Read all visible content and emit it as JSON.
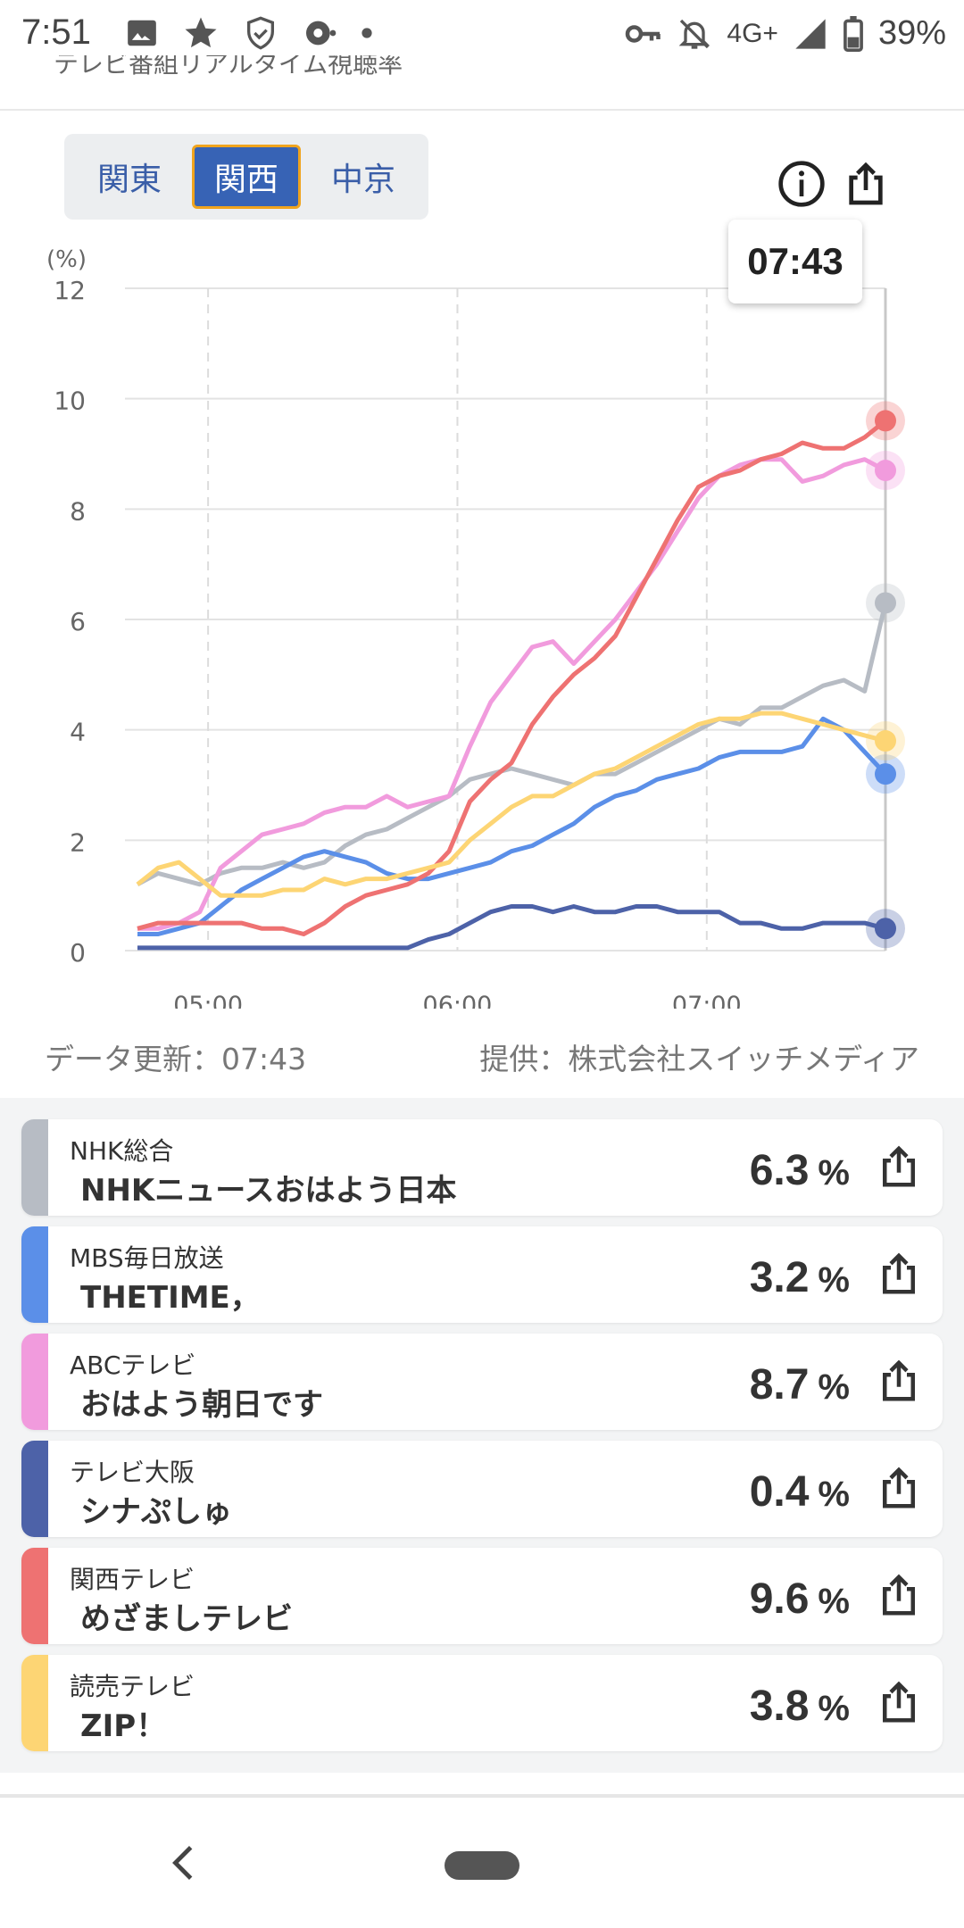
{
  "status_bar": {
    "time": "7:51",
    "network": "4G+",
    "battery": "39%",
    "left_icons": [
      "image-icon",
      "star-icon",
      "shield-icon",
      "sync-icon",
      "dot-icon"
    ],
    "right_icons": [
      "key-icon",
      "bell-off-icon",
      "signal-icon",
      "battery-icon"
    ]
  },
  "header": {
    "title_cut": "テレビ番組リアルタイム視聴率"
  },
  "regions": [
    {
      "label": "関東",
      "active": false
    },
    {
      "label": "関西",
      "active": true
    },
    {
      "label": "中京",
      "active": false
    }
  ],
  "chart_tools": {
    "info_icon": "info-icon",
    "share_icon": "share-icon"
  },
  "tooltip": {
    "time": "07:43"
  },
  "chart_data": {
    "type": "line",
    "yunit": "(%)",
    "ylim": [
      0,
      12
    ],
    "yticks": [
      "0",
      "2",
      "4",
      "6",
      "8",
      "10",
      "12"
    ],
    "xticks": [
      "05:00",
      "06:00",
      "07:00"
    ],
    "x": [
      "04:43",
      "04:48",
      "04:53",
      "04:58",
      "05:03",
      "05:08",
      "05:13",
      "05:18",
      "05:23",
      "05:28",
      "05:33",
      "05:38",
      "05:43",
      "05:48",
      "05:53",
      "05:58",
      "06:03",
      "06:08",
      "06:13",
      "06:18",
      "06:23",
      "06:28",
      "06:33",
      "06:38",
      "06:43",
      "06:48",
      "06:53",
      "06:58",
      "07:03",
      "07:08",
      "07:13",
      "07:18",
      "07:23",
      "07:28",
      "07:33",
      "07:38",
      "07:43"
    ],
    "grid": true,
    "series": [
      {
        "name": "NHK総合",
        "color": "#b7bcc4",
        "values": [
          1.2,
          1.4,
          1.3,
          1.2,
          1.4,
          1.5,
          1.5,
          1.6,
          1.5,
          1.6,
          1.9,
          2.1,
          2.2,
          2.4,
          2.6,
          2.8,
          3.1,
          3.2,
          3.3,
          3.2,
          3.1,
          3.0,
          3.2,
          3.2,
          3.4,
          3.6,
          3.8,
          4.0,
          4.2,
          4.1,
          4.4,
          4.4,
          4.6,
          4.8,
          4.9,
          4.7,
          6.3
        ]
      },
      {
        "name": "MBS毎日放送",
        "color": "#5b8fe8",
        "values": [
          0.3,
          0.3,
          0.4,
          0.5,
          0.8,
          1.1,
          1.3,
          1.5,
          1.7,
          1.8,
          1.7,
          1.6,
          1.4,
          1.3,
          1.3,
          1.4,
          1.5,
          1.6,
          1.8,
          1.9,
          2.1,
          2.3,
          2.6,
          2.8,
          2.9,
          3.1,
          3.2,
          3.3,
          3.5,
          3.6,
          3.6,
          3.6,
          3.7,
          4.2,
          4.0,
          3.6,
          3.2
        ]
      },
      {
        "name": "ABCテレビ",
        "color": "#f19bdd",
        "values": [
          0.4,
          0.4,
          0.5,
          0.7,
          1.5,
          1.8,
          2.1,
          2.2,
          2.3,
          2.5,
          2.6,
          2.6,
          2.8,
          2.6,
          2.7,
          2.8,
          3.7,
          4.5,
          5.0,
          5.5,
          5.6,
          5.2,
          5.6,
          6.0,
          6.5,
          7.0,
          7.6,
          8.2,
          8.6,
          8.8,
          8.9,
          8.9,
          8.5,
          8.6,
          8.8,
          8.9,
          8.7
        ]
      },
      {
        "name": "テレビ大阪",
        "color": "#4d62a8",
        "values": [
          0.05,
          0.05,
          0.05,
          0.05,
          0.05,
          0.05,
          0.05,
          0.05,
          0.05,
          0.05,
          0.05,
          0.05,
          0.05,
          0.05,
          0.2,
          0.3,
          0.5,
          0.7,
          0.8,
          0.8,
          0.7,
          0.8,
          0.7,
          0.7,
          0.8,
          0.8,
          0.7,
          0.7,
          0.7,
          0.5,
          0.5,
          0.4,
          0.4,
          0.5,
          0.5,
          0.5,
          0.4
        ]
      },
      {
        "name": "関西テレビ",
        "color": "#ee7272",
        "values": [
          0.4,
          0.5,
          0.5,
          0.5,
          0.5,
          0.5,
          0.4,
          0.4,
          0.3,
          0.5,
          0.8,
          1.0,
          1.1,
          1.2,
          1.4,
          1.8,
          2.7,
          3.1,
          3.4,
          4.1,
          4.6,
          5.0,
          5.3,
          5.7,
          6.4,
          7.1,
          7.8,
          8.4,
          8.6,
          8.7,
          8.9,
          9.0,
          9.2,
          9.1,
          9.1,
          9.3,
          9.6
        ]
      },
      {
        "name": "読売テレビ",
        "color": "#fdd574",
        "values": [
          1.2,
          1.5,
          1.6,
          1.3,
          1.0,
          1.0,
          1.0,
          1.1,
          1.1,
          1.3,
          1.2,
          1.3,
          1.3,
          1.4,
          1.5,
          1.6,
          2.0,
          2.3,
          2.6,
          2.8,
          2.8,
          3.0,
          3.2,
          3.3,
          3.5,
          3.7,
          3.9,
          4.1,
          4.2,
          4.2,
          4.3,
          4.3,
          4.2,
          4.1,
          4.0,
          3.9,
          3.8
        ]
      }
    ]
  },
  "footnote": {
    "updated": "データ更新：07:43",
    "provider": "提供：株式会社スイッチメディア"
  },
  "list": [
    {
      "channel": "NHK総合",
      "program": "NHKニュースおはよう日本",
      "value": "6.3",
      "unit": "%",
      "color": "#b7bcc4"
    },
    {
      "channel": "MBS毎日放送",
      "program": "THETIME，",
      "value": "3.2",
      "unit": "%",
      "color": "#5b8fe8"
    },
    {
      "channel": "ABCテレビ",
      "program": "おはよう朝日です",
      "value": "8.7",
      "unit": "%",
      "color": "#f19bdd"
    },
    {
      "channel": "テレビ大阪",
      "program": "シナぷしゅ",
      "value": "0.4",
      "unit": "%",
      "color": "#4d62a8"
    },
    {
      "channel": "関西テレビ",
      "program": "めざましテレビ",
      "value": "9.6",
      "unit": "%",
      "color": "#ee7272"
    },
    {
      "channel": "読売テレビ",
      "program": "ZIP！",
      "value": "3.8",
      "unit": "%",
      "color": "#fdd574"
    }
  ],
  "nav": {
    "back_icon": "back-icon",
    "home_icon": "home-pill-icon"
  }
}
